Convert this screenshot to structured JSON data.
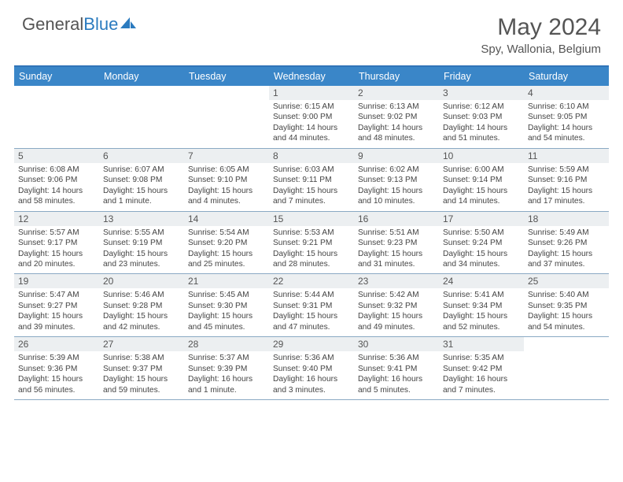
{
  "brand": {
    "part1": "General",
    "part2": "Blue"
  },
  "title": {
    "month": "May 2024",
    "location": "Spy, Wallonia, Belgium"
  },
  "colors": {
    "header_bg": "#3a86c8",
    "border": "#3074b8",
    "cell_head_bg": "#eceff1",
    "text": "#444"
  },
  "day_headers": [
    "Sunday",
    "Monday",
    "Tuesday",
    "Wednesday",
    "Thursday",
    "Friday",
    "Saturday"
  ],
  "weeks": [
    [
      {
        "empty": true
      },
      {
        "empty": true
      },
      {
        "empty": true
      },
      {
        "n": "1",
        "sr": "6:15 AM",
        "ss": "9:00 PM",
        "dl": "14 hours and 44 minutes."
      },
      {
        "n": "2",
        "sr": "6:13 AM",
        "ss": "9:02 PM",
        "dl": "14 hours and 48 minutes."
      },
      {
        "n": "3",
        "sr": "6:12 AM",
        "ss": "9:03 PM",
        "dl": "14 hours and 51 minutes."
      },
      {
        "n": "4",
        "sr": "6:10 AM",
        "ss": "9:05 PM",
        "dl": "14 hours and 54 minutes."
      }
    ],
    [
      {
        "n": "5",
        "sr": "6:08 AM",
        "ss": "9:06 PM",
        "dl": "14 hours and 58 minutes."
      },
      {
        "n": "6",
        "sr": "6:07 AM",
        "ss": "9:08 PM",
        "dl": "15 hours and 1 minute."
      },
      {
        "n": "7",
        "sr": "6:05 AM",
        "ss": "9:10 PM",
        "dl": "15 hours and 4 minutes."
      },
      {
        "n": "8",
        "sr": "6:03 AM",
        "ss": "9:11 PM",
        "dl": "15 hours and 7 minutes."
      },
      {
        "n": "9",
        "sr": "6:02 AM",
        "ss": "9:13 PM",
        "dl": "15 hours and 10 minutes."
      },
      {
        "n": "10",
        "sr": "6:00 AM",
        "ss": "9:14 PM",
        "dl": "15 hours and 14 minutes."
      },
      {
        "n": "11",
        "sr": "5:59 AM",
        "ss": "9:16 PM",
        "dl": "15 hours and 17 minutes."
      }
    ],
    [
      {
        "n": "12",
        "sr": "5:57 AM",
        "ss": "9:17 PM",
        "dl": "15 hours and 20 minutes."
      },
      {
        "n": "13",
        "sr": "5:55 AM",
        "ss": "9:19 PM",
        "dl": "15 hours and 23 minutes."
      },
      {
        "n": "14",
        "sr": "5:54 AM",
        "ss": "9:20 PM",
        "dl": "15 hours and 25 minutes."
      },
      {
        "n": "15",
        "sr": "5:53 AM",
        "ss": "9:21 PM",
        "dl": "15 hours and 28 minutes."
      },
      {
        "n": "16",
        "sr": "5:51 AM",
        "ss": "9:23 PM",
        "dl": "15 hours and 31 minutes."
      },
      {
        "n": "17",
        "sr": "5:50 AM",
        "ss": "9:24 PM",
        "dl": "15 hours and 34 minutes."
      },
      {
        "n": "18",
        "sr": "5:49 AM",
        "ss": "9:26 PM",
        "dl": "15 hours and 37 minutes."
      }
    ],
    [
      {
        "n": "19",
        "sr": "5:47 AM",
        "ss": "9:27 PM",
        "dl": "15 hours and 39 minutes."
      },
      {
        "n": "20",
        "sr": "5:46 AM",
        "ss": "9:28 PM",
        "dl": "15 hours and 42 minutes."
      },
      {
        "n": "21",
        "sr": "5:45 AM",
        "ss": "9:30 PM",
        "dl": "15 hours and 45 minutes."
      },
      {
        "n": "22",
        "sr": "5:44 AM",
        "ss": "9:31 PM",
        "dl": "15 hours and 47 minutes."
      },
      {
        "n": "23",
        "sr": "5:42 AM",
        "ss": "9:32 PM",
        "dl": "15 hours and 49 minutes."
      },
      {
        "n": "24",
        "sr": "5:41 AM",
        "ss": "9:34 PM",
        "dl": "15 hours and 52 minutes."
      },
      {
        "n": "25",
        "sr": "5:40 AM",
        "ss": "9:35 PM",
        "dl": "15 hours and 54 minutes."
      }
    ],
    [
      {
        "n": "26",
        "sr": "5:39 AM",
        "ss": "9:36 PM",
        "dl": "15 hours and 56 minutes."
      },
      {
        "n": "27",
        "sr": "5:38 AM",
        "ss": "9:37 PM",
        "dl": "15 hours and 59 minutes."
      },
      {
        "n": "28",
        "sr": "5:37 AM",
        "ss": "9:39 PM",
        "dl": "16 hours and 1 minute."
      },
      {
        "n": "29",
        "sr": "5:36 AM",
        "ss": "9:40 PM",
        "dl": "16 hours and 3 minutes."
      },
      {
        "n": "30",
        "sr": "5:36 AM",
        "ss": "9:41 PM",
        "dl": "16 hours and 5 minutes."
      },
      {
        "n": "31",
        "sr": "5:35 AM",
        "ss": "9:42 PM",
        "dl": "16 hours and 7 minutes."
      },
      {
        "empty": true
      }
    ]
  ],
  "labels": {
    "sunrise": "Sunrise: ",
    "sunset": "Sunset: ",
    "daylight": "Daylight: "
  }
}
